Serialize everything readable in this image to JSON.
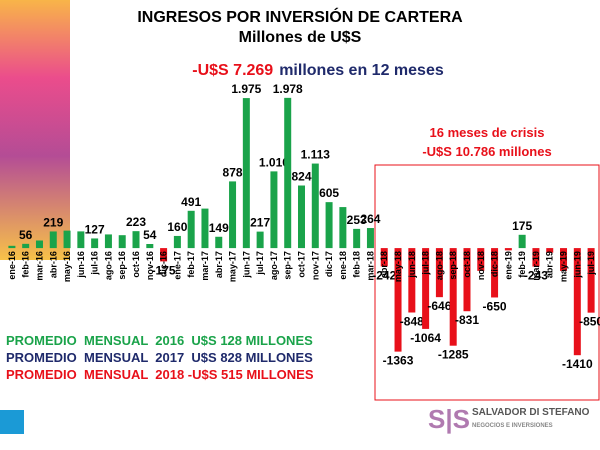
{
  "chart_data": {
    "type": "bar",
    "title": "INGRESOS POR INVERSIÓN DE CARTERA",
    "subtitle": "Millones de U$S",
    "headline": [
      {
        "text": "-U$S 7.269",
        "color": "#e8101a"
      },
      {
        "text": "millones en 12 meses",
        "color": "#1f2a6b"
      }
    ],
    "annotation": {
      "lines": [
        "16 meses de crisis",
        "-U$S 10.786 millones"
      ],
      "color": "#e8101a"
    },
    "averages": [
      {
        "text": "PROMEDIO  MENSUAL  2016  U$S 128 MILLONES",
        "color": "#1aa34a"
      },
      {
        "text": "PROMEDIO  MENSUAL  2017  U$S 828 MILLONES",
        "color": "#1f2a6b"
      },
      {
        "text": "PROMEDIO  MENSUAL  2018 -U$S 515 MILLONES",
        "color": "#e8101a"
      }
    ],
    "categories": [
      "ene-16",
      "feb-16",
      "mar-16",
      "abr-16",
      "may-16",
      "jun-16",
      "jul-16",
      "ago-16",
      "sep-16",
      "oct-16",
      "nov-16",
      "dic-16",
      "ene-17",
      "feb-17",
      "mar-17",
      "abr-17",
      "may-17",
      "jun-17",
      "jul-17",
      "ago-17",
      "sep-17",
      "oct-17",
      "nov-17",
      "dic-17",
      "ene-18",
      "feb-18",
      "mar-18",
      "abr-18",
      "may-18",
      "jun-18",
      "jul-18",
      "ago-18",
      "sep-18",
      "oct-18",
      "nov-18",
      "dic-18",
      "ene-19",
      "feb-19",
      "mar-19",
      "abr-19",
      "may-19",
      "jun-19",
      "jul-19"
    ],
    "values": [
      30,
      56,
      100,
      219,
      230,
      220,
      127,
      180,
      170,
      223,
      54,
      -175,
      160,
      491,
      520,
      149,
      878,
      1975,
      217,
      1010,
      1978,
      824,
      1113,
      605,
      540,
      253,
      264,
      -242,
      -1363,
      -848,
      -1064,
      -646,
      -1285,
      -831,
      -300,
      -650,
      -30,
      175,
      -243,
      -60,
      -300,
      -1410,
      -850
    ],
    "value_labels": [
      null,
      "56",
      null,
      "219",
      null,
      null,
      "127",
      null,
      null,
      "223",
      "54",
      "-175",
      "160",
      "491",
      null,
      "149",
      "878",
      "1.975",
      "217",
      "1.010",
      "1.978",
      "824",
      "1.113",
      "605",
      null,
      "253",
      "264",
      "-242",
      "-1363",
      "-848",
      "-1064",
      "-646",
      "-1285",
      "-831",
      null,
      "-650",
      null,
      "175",
      "-243",
      null,
      null,
      "-1410",
      "-850"
    ],
    "color": "#1aa34a",
    "negative_color": "#e8101a",
    "ylim": [
      -2000,
      2200
    ]
  },
  "logo": {
    "name": "SALVADOR DI STEFANO",
    "tagline": "NEGOCIOS E INVERSIONES"
  }
}
